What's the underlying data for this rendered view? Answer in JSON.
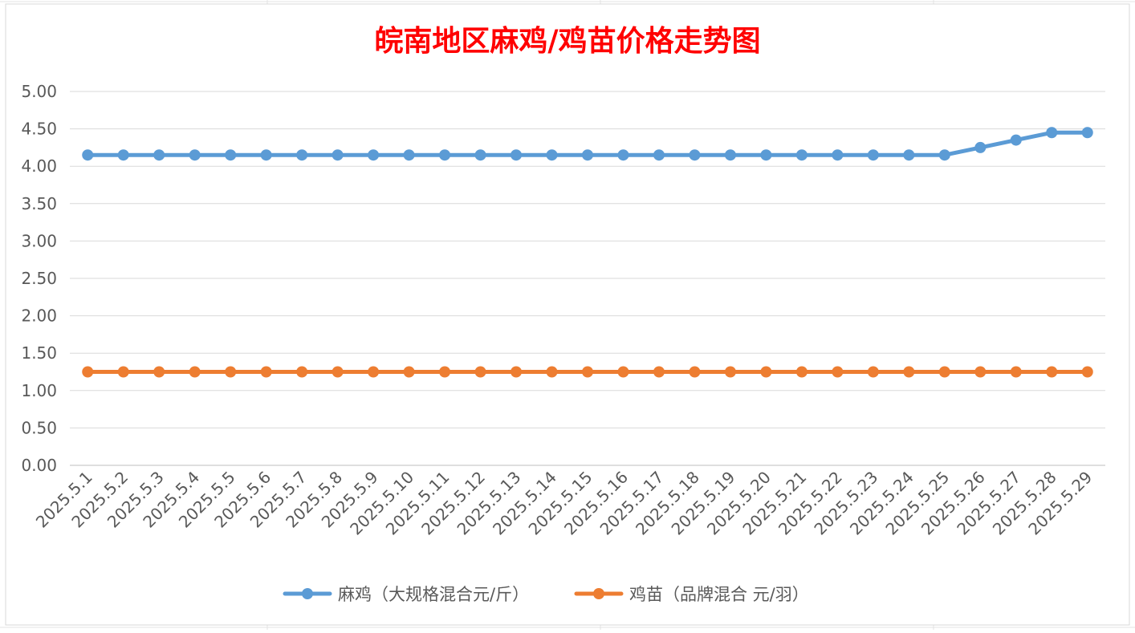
{
  "chart_data": {
    "type": "line",
    "title": "皖南地区麻鸡/鸡苗价格走势图",
    "xlabel": "",
    "ylabel": "",
    "ylim": [
      0,
      5
    ],
    "yticks": [
      "0.00",
      "0.50",
      "1.00",
      "1.50",
      "2.00",
      "2.50",
      "3.00",
      "3.50",
      "4.00",
      "4.50",
      "5.00"
    ],
    "grid": true,
    "legend_position": "bottom",
    "categories": [
      "2025.5.1",
      "2025.5.2",
      "2025.5.3",
      "2025.5.4",
      "2025.5.5",
      "2025.5.6",
      "2025.5.7",
      "2025.5.8",
      "2025.5.9",
      "2025.5.10",
      "2025.5.11",
      "2025.5.12",
      "2025.5.13",
      "2025.5.14",
      "2025.5.15",
      "2025.5.16",
      "2025.5.17",
      "2025.5.18",
      "2025.5.19",
      "2025.5.20",
      "2025.5.21",
      "2025.5.22",
      "2025.5.23",
      "2025.5.24",
      "2025.5.25",
      "2025.5.26",
      "2025.5.27",
      "2025.5.28",
      "2025.5.29"
    ],
    "series": [
      {
        "name": "麻鸡（大规格混合元/斤）",
        "color": "#5b9bd5",
        "values": [
          4.15,
          4.15,
          4.15,
          4.15,
          4.15,
          4.15,
          4.15,
          4.15,
          4.15,
          4.15,
          4.15,
          4.15,
          4.15,
          4.15,
          4.15,
          4.15,
          4.15,
          4.15,
          4.15,
          4.15,
          4.15,
          4.15,
          4.15,
          4.15,
          4.15,
          4.25,
          4.35,
          4.45,
          4.45
        ]
      },
      {
        "name": "鸡苗（品牌混合 元/羽）",
        "color": "#ed7d31",
        "values": [
          1.25,
          1.25,
          1.25,
          1.25,
          1.25,
          1.25,
          1.25,
          1.25,
          1.25,
          1.25,
          1.25,
          1.25,
          1.25,
          1.25,
          1.25,
          1.25,
          1.25,
          1.25,
          1.25,
          1.25,
          1.25,
          1.25,
          1.25,
          1.25,
          1.25,
          1.25,
          1.25,
          1.25,
          1.25
        ]
      }
    ],
    "title_color": "#ff0000"
  }
}
